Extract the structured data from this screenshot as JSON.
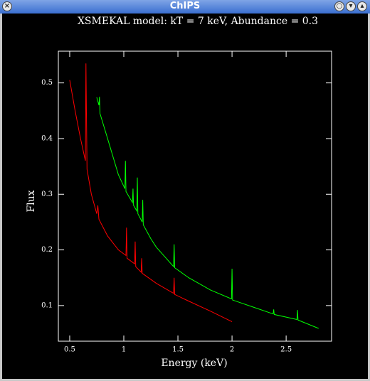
{
  "window": {
    "title": "ChIPS"
  },
  "chart_data": {
    "type": "line",
    "title": "XSMEKAL model: kT = 7 keV, Abundance = 0.3",
    "xlabel": "Energy (keV)",
    "ylabel": "Flux",
    "xlim": [
      0.395,
      2.92
    ],
    "ylim": [
      0.036,
      0.557
    ],
    "xticks": [
      0.5,
      1,
      1.5,
      2,
      2.5
    ],
    "yticks": [
      0.1,
      0.2,
      0.3,
      0.4,
      0.5
    ],
    "series": [
      {
        "color": "#ff0000",
        "x": [
          0.5,
          0.55,
          0.6,
          0.645,
          0.65,
          0.66,
          0.7,
          0.75,
          0.76,
          0.77,
          0.85,
          0.95,
          1.02,
          1.025,
          1.03,
          1.1,
          1.105,
          1.11,
          1.16,
          1.165,
          1.17,
          1.3,
          1.46,
          1.465,
          1.47,
          1.6,
          1.8,
          2.0
        ],
        "values": [
          0.505,
          0.45,
          0.4,
          0.36,
          0.535,
          0.345,
          0.3,
          0.265,
          0.28,
          0.255,
          0.225,
          0.2,
          0.19,
          0.24,
          0.185,
          0.175,
          0.215,
          0.17,
          0.16,
          0.185,
          0.158,
          0.14,
          0.122,
          0.15,
          0.12,
          0.108,
          0.09,
          0.071
        ]
      },
      {
        "color": "#00ff00",
        "x": [
          0.75,
          0.77,
          0.775,
          0.78,
          0.85,
          0.95,
          1.01,
          1.015,
          1.02,
          1.08,
          1.085,
          1.09,
          1.12,
          1.125,
          1.13,
          1.17,
          1.175,
          1.18,
          1.25,
          1.3,
          1.46,
          1.465,
          1.47,
          1.6,
          1.8,
          1.995,
          2.0,
          2.005,
          2.2,
          2.38,
          2.385,
          2.39,
          2.6,
          2.605,
          2.61,
          2.8
        ],
        "values": [
          0.474,
          0.46,
          0.475,
          0.445,
          0.4,
          0.335,
          0.31,
          0.36,
          0.305,
          0.285,
          0.31,
          0.28,
          0.27,
          0.33,
          0.265,
          0.25,
          0.29,
          0.245,
          0.22,
          0.205,
          0.17,
          0.21,
          0.168,
          0.15,
          0.128,
          0.112,
          0.166,
          0.11,
          0.097,
          0.085,
          0.093,
          0.084,
          0.075,
          0.092,
          0.074,
          0.059
        ]
      }
    ]
  }
}
